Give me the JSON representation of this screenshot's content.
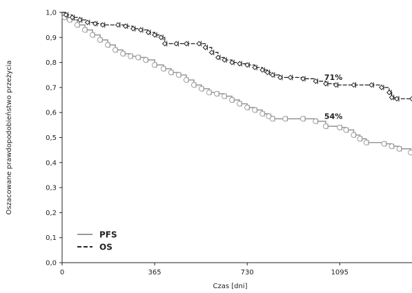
{
  "chart_data": {
    "type": "line",
    "title": "",
    "xlabel": "Czas [dni]",
    "ylabel": "Oszacowane prawdopodobieństwo przeżycia",
    "xlim": [
      0,
      1380
    ],
    "ylim": [
      0,
      1.0
    ],
    "x_ticks": [
      0,
      365,
      730,
      1095
    ],
    "x_tick_labels": [
      "0",
      "365",
      "730",
      "1095"
    ],
    "y_ticks": [
      0,
      0.1,
      0.2,
      0.3,
      0.4,
      0.5,
      0.6,
      0.7,
      0.8,
      0.9,
      1.0
    ],
    "y_tick_labels": [
      "0,0",
      "0,1",
      "0,2",
      "0,3",
      "0,4",
      "0,5",
      "0,6",
      "0,7",
      "0,8",
      "0,9",
      "1,0"
    ],
    "legend": "bottom-left",
    "series": [
      {
        "name": "PFS",
        "color": "#9a9a9a",
        "style": "solid",
        "marker": "circle",
        "points": [
          [
            0,
            1.0
          ],
          [
            10,
            0.98
          ],
          [
            30,
            0.97
          ],
          [
            60,
            0.95
          ],
          [
            90,
            0.93
          ],
          [
            120,
            0.91
          ],
          [
            150,
            0.89
          ],
          [
            180,
            0.87
          ],
          [
            210,
            0.85
          ],
          [
            240,
            0.835
          ],
          [
            270,
            0.825
          ],
          [
            300,
            0.82
          ],
          [
            330,
            0.81
          ],
          [
            365,
            0.79
          ],
          [
            400,
            0.775
          ],
          [
            430,
            0.76
          ],
          [
            460,
            0.75
          ],
          [
            490,
            0.73
          ],
          [
            520,
            0.71
          ],
          [
            550,
            0.695
          ],
          [
            580,
            0.68
          ],
          [
            610,
            0.675
          ],
          [
            640,
            0.665
          ],
          [
            670,
            0.65
          ],
          [
            700,
            0.635
          ],
          [
            730,
            0.62
          ],
          [
            760,
            0.61
          ],
          [
            790,
            0.595
          ],
          [
            815,
            0.585
          ],
          [
            830,
            0.575
          ],
          [
            880,
            0.575
          ],
          [
            950,
            0.575
          ],
          [
            1000,
            0.565
          ],
          [
            1040,
            0.545
          ],
          [
            1095,
            0.54
          ],
          [
            1120,
            0.53
          ],
          [
            1150,
            0.51
          ],
          [
            1175,
            0.495
          ],
          [
            1200,
            0.48
          ],
          [
            1270,
            0.475
          ],
          [
            1300,
            0.465
          ],
          [
            1330,
            0.455
          ],
          [
            1375,
            0.44
          ]
        ],
        "annotation": "54%",
        "annotation_at": [
          1070,
          0.575
        ]
      },
      {
        "name": "OS",
        "color": "#222222",
        "style": "dashed",
        "marker": "diamond",
        "points": [
          [
            0,
            1.0
          ],
          [
            15,
            0.99
          ],
          [
            40,
            0.98
          ],
          [
            70,
            0.97
          ],
          [
            100,
            0.96
          ],
          [
            130,
            0.955
          ],
          [
            160,
            0.95
          ],
          [
            220,
            0.95
          ],
          [
            250,
            0.945
          ],
          [
            280,
            0.935
          ],
          [
            310,
            0.93
          ],
          [
            340,
            0.92
          ],
          [
            365,
            0.91
          ],
          [
            390,
            0.9
          ],
          [
            405,
            0.875
          ],
          [
            450,
            0.875
          ],
          [
            490,
            0.875
          ],
          [
            540,
            0.875
          ],
          [
            565,
            0.86
          ],
          [
            590,
            0.84
          ],
          [
            615,
            0.82
          ],
          [
            640,
            0.81
          ],
          [
            670,
            0.8
          ],
          [
            700,
            0.795
          ],
          [
            730,
            0.79
          ],
          [
            760,
            0.78
          ],
          [
            790,
            0.77
          ],
          [
            810,
            0.76
          ],
          [
            830,
            0.75
          ],
          [
            860,
            0.74
          ],
          [
            900,
            0.74
          ],
          [
            950,
            0.735
          ],
          [
            1000,
            0.725
          ],
          [
            1040,
            0.715
          ],
          [
            1080,
            0.71
          ],
          [
            1150,
            0.71
          ],
          [
            1220,
            0.71
          ],
          [
            1260,
            0.7
          ],
          [
            1290,
            0.68
          ],
          [
            1300,
            0.66
          ],
          [
            1320,
            0.655
          ],
          [
            1380,
            0.655
          ]
        ],
        "annotation": "71%",
        "annotation_at": [
          1070,
          0.73
        ]
      }
    ]
  }
}
